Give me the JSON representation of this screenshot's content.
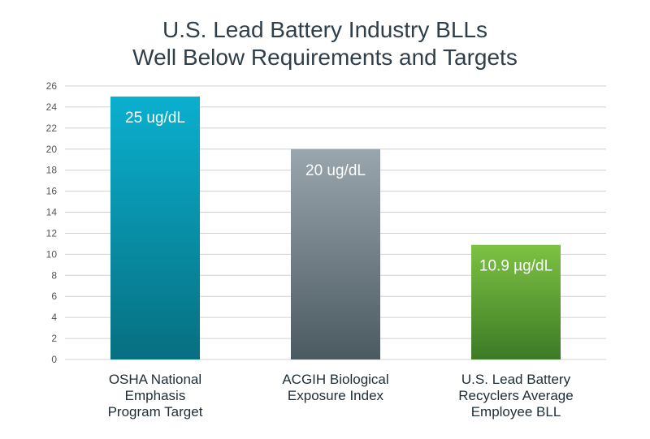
{
  "chart_data": {
    "type": "bar",
    "title": [
      "U.S. Lead Battery Industry BLLs",
      "Well Below Requirements and Targets"
    ],
    "xlabel": "",
    "ylabel": "",
    "ylim": [
      0,
      26
    ],
    "yticks": [
      0,
      2,
      4,
      6,
      8,
      10,
      12,
      14,
      16,
      18,
      20,
      22,
      24,
      26
    ],
    "grid": true,
    "legend": "none",
    "categories": [
      [
        "OSHA National",
        "Emphasis",
        "Program Target"
      ],
      [
        "ACGIH Biological",
        "Exposure Index"
      ],
      [
        "U.S. Lead Battery",
        "Recyclers Average",
        "Employee BLL"
      ]
    ],
    "values": [
      25,
      20,
      10.9
    ],
    "data_labels": [
      "25 ug/dL",
      "20 ug/dL",
      "10.9 µg/dL"
    ],
    "colors": [
      {
        "top": "#0ab0cf",
        "bottom": "#076f80"
      },
      {
        "top": "#9aa6ae",
        "bottom": "#4b5961"
      },
      {
        "top": "#7dc243",
        "bottom": "#3c7a26"
      }
    ],
    "grid_color": "#d0d0d0",
    "tick_color": "#555555"
  }
}
